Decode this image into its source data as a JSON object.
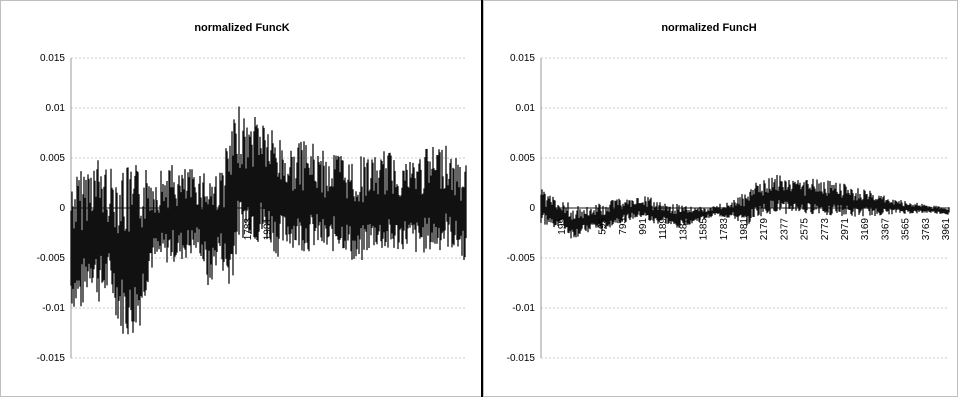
{
  "chart_data": [
    {
      "type": "line",
      "title": "normalized FuncK",
      "xlabel": "",
      "ylabel": "",
      "ylim": [
        -0.015,
        0.015
      ],
      "yticks": [
        "0.015",
        "0.01",
        "0.005",
        "0",
        "-0.005",
        "-0.01",
        "-0.015"
      ],
      "xtick_labels": [
        "1783",
        "1981"
      ],
      "grid": true,
      "series": [
        {
          "color": "#111111",
          "x": [
            1,
            100,
            200,
            300,
            400,
            500,
            600,
            700,
            800,
            900,
            1000,
            1100,
            1200,
            1300,
            1400,
            1500,
            1600,
            1700,
            1800,
            1900,
            2000,
            2100,
            2200,
            2300,
            2400,
            2500,
            2600,
            2700,
            2800,
            2900,
            3000,
            3100,
            3200,
            3300,
            3400,
            3500,
            3600,
            3700,
            3800,
            3900,
            4000
          ],
          "upper": [
            0.003,
            0.004,
            0.005,
            0.0055,
            0.004,
            0.005,
            0.004,
            0.0045,
            0.004,
            0.004,
            0.0045,
            0.004,
            0.004,
            0.004,
            0.0045,
            0.0035,
            0.0075,
            0.0102,
            0.0085,
            0.0108,
            0.0085,
            0.0075,
            0.006,
            0.0065,
            0.007,
            0.006,
            0.0055,
            0.006,
            0.005,
            0.005,
            0.0055,
            0.005,
            0.006,
            0.0055,
            0.005,
            0.0055,
            0.006,
            0.0065,
            0.0068,
            0.005,
            0.0048
          ],
          "lower": [
            -0.01,
            -0.0108,
            -0.0075,
            -0.01,
            -0.0085,
            -0.0125,
            -0.0133,
            -0.0118,
            -0.0065,
            -0.006,
            -0.0055,
            -0.0055,
            -0.005,
            -0.0045,
            -0.0088,
            -0.0048,
            -0.009,
            -0.0035,
            -0.0025,
            -0.004,
            -0.0035,
            -0.005,
            -0.0038,
            -0.0042,
            -0.0045,
            -0.004,
            -0.005,
            -0.004,
            -0.0045,
            -0.0065,
            -0.0045,
            -0.004,
            -0.0048,
            -0.0045,
            -0.004,
            -0.0048,
            -0.0045,
            -0.0045,
            -0.004,
            -0.0045,
            -0.0055
          ]
        }
      ]
    },
    {
      "type": "line",
      "title": "normalized FuncH",
      "xlabel": "",
      "ylabel": "",
      "ylim": [
        -0.015,
        0.015
      ],
      "yticks": [
        "0.015",
        "0.01",
        "0.005",
        "0",
        "-0.005",
        "-0.01",
        "-0.015"
      ],
      "xtick_labels": [
        "199",
        "595",
        "793",
        "991",
        "1189",
        "1387",
        "1585",
        "1783",
        "1981",
        "2179",
        "2377",
        "2575",
        "2773",
        "2971",
        "3169",
        "3367",
        "3565",
        "3763",
        "3961"
      ],
      "grid": true,
      "series": [
        {
          "color": "#111111",
          "x": [
            1,
            100,
            200,
            300,
            400,
            500,
            600,
            700,
            800,
            900,
            1000,
            1100,
            1200,
            1300,
            1400,
            1500,
            1600,
            1700,
            1800,
            1900,
            2000,
            2100,
            2200,
            2300,
            2400,
            2500,
            2600,
            2700,
            2800,
            2900,
            3000,
            3100,
            3200,
            3300,
            3400,
            3500,
            3600,
            3700,
            3800,
            3900,
            4000
          ],
          "upper": [
            0.002,
            0.0012,
            0.0008,
            0.0005,
            0.0002,
            0.0003,
            0.0006,
            0.0008,
            0.001,
            0.0009,
            0.0012,
            0.001,
            0.0008,
            0.0005,
            0.0004,
            0.0002,
            0.0001,
            0.0002,
            0.0006,
            0.001,
            0.0018,
            0.0025,
            0.003,
            0.0036,
            0.003,
            0.003,
            0.0028,
            0.003,
            0.0028,
            0.0026,
            0.0024,
            0.002,
            0.0018,
            0.0015,
            0.0012,
            0.0009,
            0.0007,
            0.0005,
            0.0003,
            0.0002,
            0.0001
          ],
          "lower": [
            -0.0015,
            -0.002,
            -0.0018,
            -0.0032,
            -0.0028,
            -0.0022,
            -0.0025,
            -0.0018,
            -0.0015,
            -0.0012,
            -0.001,
            -0.0018,
            -0.0015,
            -0.0022,
            -0.0018,
            -0.0016,
            -0.0012,
            -0.0008,
            -0.001,
            -0.0012,
            -0.002,
            -0.001,
            -0.0008,
            -0.0005,
            -0.0006,
            -0.0005,
            -0.0008,
            -0.0006,
            -0.0007,
            -0.0008,
            -0.0009,
            -0.001,
            -0.0008,
            -0.0008,
            -0.0007,
            -0.0006,
            -0.0006,
            -0.0006,
            -0.0005,
            -0.0006,
            -0.0007
          ]
        }
      ]
    }
  ]
}
